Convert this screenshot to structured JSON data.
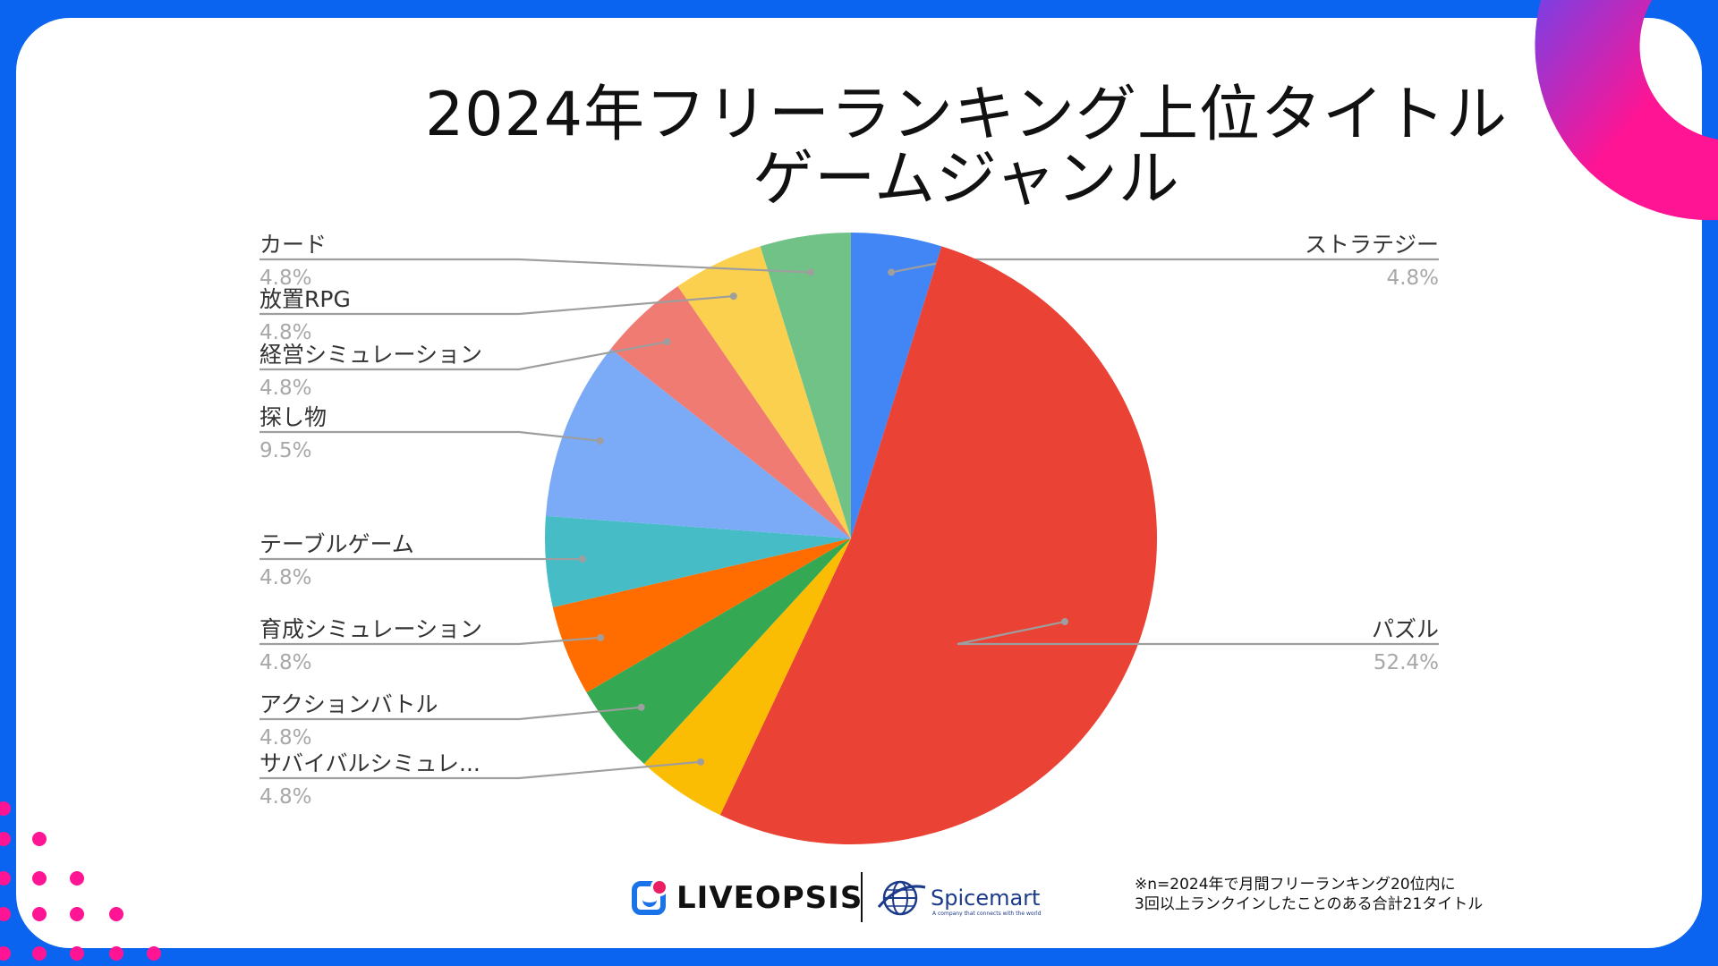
{
  "title_line1": "2024年フリーランキング上位タイトル",
  "title_line2": "ゲームジャンル",
  "footnote_line1": "※n=2024年で月間フリーランキング20位内に",
  "footnote_line2": "3回以上ランクインしたことのある合計21タイトル",
  "logos": {
    "liveopsis": "LIVEOPSIS",
    "spicemart": "Spicemart",
    "spicemart_tagline": "A company that connects with the world"
  },
  "colors": {
    "frame": "#0a64f0",
    "accent_pink": "#ff1493",
    "accent_purple": "#7b3fe4"
  },
  "chart_data": {
    "type": "pie",
    "title": "",
    "slices": [
      {
        "label": "ストラテジー",
        "value": 4.8,
        "value_label": "4.8%",
        "color": "#4285f4"
      },
      {
        "label": "パズル",
        "value": 52.4,
        "value_label": "52.4%",
        "color": "#ea4335"
      },
      {
        "label": "サバイバルシミュレ...",
        "value": 4.8,
        "value_label": "4.8%",
        "color": "#fbbc04"
      },
      {
        "label": "アクションバトル",
        "value": 4.8,
        "value_label": "4.8%",
        "color": "#34a853"
      },
      {
        "label": "育成シミュレーション",
        "value": 4.8,
        "value_label": "4.8%",
        "color": "#ff6d01"
      },
      {
        "label": "テーブルゲーム",
        "value": 4.8,
        "value_label": "4.8%",
        "color": "#46bdc6"
      },
      {
        "label": "探し物",
        "value": 9.5,
        "value_label": "9.5%",
        "color": "#7baaf7"
      },
      {
        "label": "経営シミュレーション",
        "value": 4.8,
        "value_label": "4.8%",
        "color": "#f07b72"
      },
      {
        "label": "放置RPG",
        "value": 4.8,
        "value_label": "4.8%",
        "color": "#fcd04f"
      },
      {
        "label": "カード",
        "value": 4.8,
        "value_label": "4.8%",
        "color": "#71c287"
      }
    ]
  }
}
